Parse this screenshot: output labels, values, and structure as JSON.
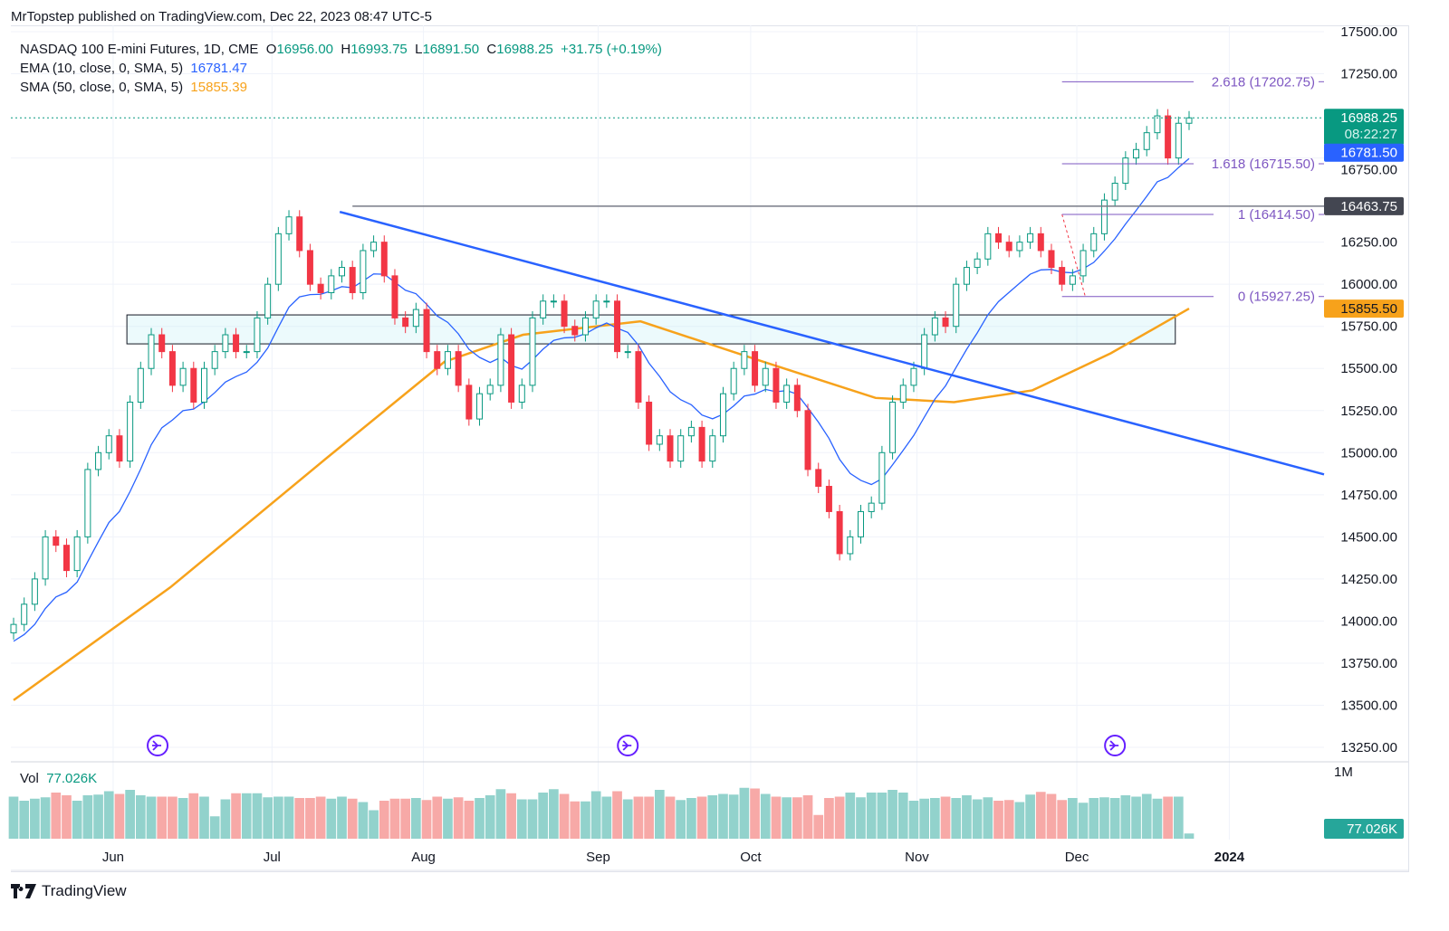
{
  "header": {
    "published": "MrTopstep published on TradingView.com, Dec 22, 2023 08:47 UTC-5"
  },
  "legend": {
    "symbol": "NASDAQ 100 E-mini Futures, 1D, CME",
    "o_label": "O",
    "o": "16956.00",
    "h_label": "H",
    "h": "16993.75",
    "l_label": "L",
    "l": "16891.50",
    "c_label": "C",
    "c": "16988.25",
    "change": "+31.75 (+0.19%)",
    "ema_label": "EMA (10, close, 0, SMA, 5)",
    "ema_value": "16781.47",
    "sma_label": "SMA (50, close, 0, SMA, 5)",
    "sma_value": "15855.39"
  },
  "volume": {
    "label": "Vol",
    "value": "77.026K",
    "axis_label": "1M",
    "badge": "77.026K"
  },
  "price_badges": {
    "last": "16988.25",
    "countdown": "08:22:27",
    "ema": "16781.50",
    "hline": "16463.75",
    "sma": "15855.50"
  },
  "colors": {
    "up": "#089981",
    "down": "#f23645",
    "vol_up": "#92d2cc",
    "vol_down": "#f7a9a7",
    "ema": "#2962ff",
    "sma": "#f7a21b",
    "trend": "#2962ff",
    "fib": "#7e57c2",
    "badge_dark": "#434651"
  },
  "footer": {
    "brand": "TradingView"
  },
  "chart_data": {
    "type": "candlestick",
    "title": "NASDAQ 100 E-mini Futures, 1D, CME",
    "ylim": [
      13150,
      17550
    ],
    "y_ticks": [
      "17500.00",
      "17250.00",
      "16750.00",
      "16250.00",
      "16000.00",
      "15750.00",
      "15500.00",
      "15250.00",
      "15000.00",
      "14750.00",
      "14500.00",
      "14250.00",
      "14000.00",
      "13750.00",
      "13500.00",
      "13250.00"
    ],
    "x_ticks": [
      {
        "label": "Jun",
        "bar": 9.4
      },
      {
        "label": "Jul",
        "bar": 24.4
      },
      {
        "label": "Aug",
        "bar": 38.7
      },
      {
        "label": "Sep",
        "bar": 55.2
      },
      {
        "label": "Oct",
        "bar": 69.6
      },
      {
        "label": "Nov",
        "bar": 85.3
      },
      {
        "label": "Dec",
        "bar": 100.4
      },
      {
        "label": "2024",
        "bar": 114.8
      }
    ],
    "closes": [
      13980,
      14100,
      14250,
      14500,
      14450,
      14300,
      14500,
      14900,
      15000,
      15100,
      14950,
      15300,
      15500,
      15700,
      15600,
      15400,
      15500,
      15300,
      15500,
      15600,
      15700,
      15600,
      15600,
      15800,
      16000,
      16300,
      16400,
      16200,
      16000,
      15950,
      16050,
      16100,
      15950,
      16200,
      16250,
      16050,
      15800,
      15750,
      15850,
      15600,
      15500,
      15600,
      15400,
      15200,
      15350,
      15400,
      15700,
      15300,
      15400,
      15800,
      15900,
      15900,
      15750,
      15700,
      15800,
      15900,
      15900,
      15600,
      15600,
      15300,
      15050,
      15100,
      14950,
      15100,
      15150,
      14950,
      15100,
      15350,
      15500,
      15600,
      15400,
      15500,
      15300,
      15400,
      15250,
      14900,
      14800,
      14650,
      14400,
      14500,
      14650,
      14700,
      15000,
      15300,
      15400,
      15500,
      15700,
      15800,
      15750,
      16000,
      16100,
      16150,
      16300,
      16250,
      16200,
      16250,
      16300,
      16200,
      16100,
      16000,
      16050,
      16200,
      16300,
      16500,
      16600,
      16750,
      16800,
      16900,
      17000,
      16750,
      16956,
      16988.25
    ],
    "volumes": [
      620000,
      560000,
      590000,
      610000,
      680000,
      640000,
      560000,
      640000,
      650000,
      700000,
      660000,
      720000,
      640000,
      620000,
      620000,
      620000,
      600000,
      670000,
      620000,
      330000,
      580000,
      670000,
      670000,
      670000,
      610000,
      620000,
      620000,
      600000,
      600000,
      620000,
      590000,
      620000,
      590000,
      540000,
      420000,
      560000,
      590000,
      590000,
      600000,
      570000,
      620000,
      590000,
      610000,
      560000,
      600000,
      640000,
      730000,
      670000,
      580000,
      580000,
      680000,
      730000,
      660000,
      550000,
      550000,
      700000,
      620000,
      700000,
      580000,
      620000,
      620000,
      720000,
      620000,
      570000,
      600000,
      620000,
      640000,
      660000,
      650000,
      750000,
      740000,
      660000,
      620000,
      610000,
      610000,
      640000,
      350000,
      600000,
      620000,
      680000,
      610000,
      680000,
      680000,
      720000,
      680000,
      560000,
      590000,
      600000,
      620000,
      600000,
      640000,
      580000,
      610000,
      560000,
      570000,
      540000,
      650000,
      690000,
      660000,
      570000,
      600000,
      530000,
      600000,
      610000,
      600000,
      640000,
      620000,
      660000,
      590000,
      620000,
      620000,
      77026
    ],
    "sma50": [
      [
        0,
        13530
      ],
      [
        20,
        14200
      ],
      [
        40,
        14970
      ],
      [
        55,
        15540
      ],
      [
        65,
        15700
      ],
      [
        80,
        15780
      ],
      [
        95,
        15550
      ],
      [
        110,
        15325
      ],
      [
        120,
        15300
      ],
      [
        130,
        15370
      ],
      [
        140,
        15590
      ],
      [
        150,
        15855.39
      ]
    ],
    "drawings": {
      "trendline": {
        "from": [
          30.8,
          16430
        ],
        "to": [
          123.8,
          14870
        ]
      },
      "support_zone": {
        "from_bar": 10.7,
        "to_bar": 109.7,
        "top": 15818,
        "bottom": 15646
      },
      "resistance_line": {
        "bar": 32,
        "price": 16463.75
      },
      "fib": {
        "from_bar": 99,
        "anchor_top": 16414.5,
        "anchor_bottom": 15927.25,
        "levels": [
          {
            "label": "2.618 (17202.75)",
            "price": 17202.75
          },
          {
            "label": "1.618 (16715.50)",
            "price": 16715.5
          },
          {
            "label": "1 (16414.50)",
            "price": 16414.5
          },
          {
            "label": "0 (15927.25)",
            "price": 15927.25
          }
        ]
      }
    },
    "events": [
      {
        "bar": 13.6
      },
      {
        "bar": 58
      },
      {
        "bar": 104
      }
    ]
  }
}
